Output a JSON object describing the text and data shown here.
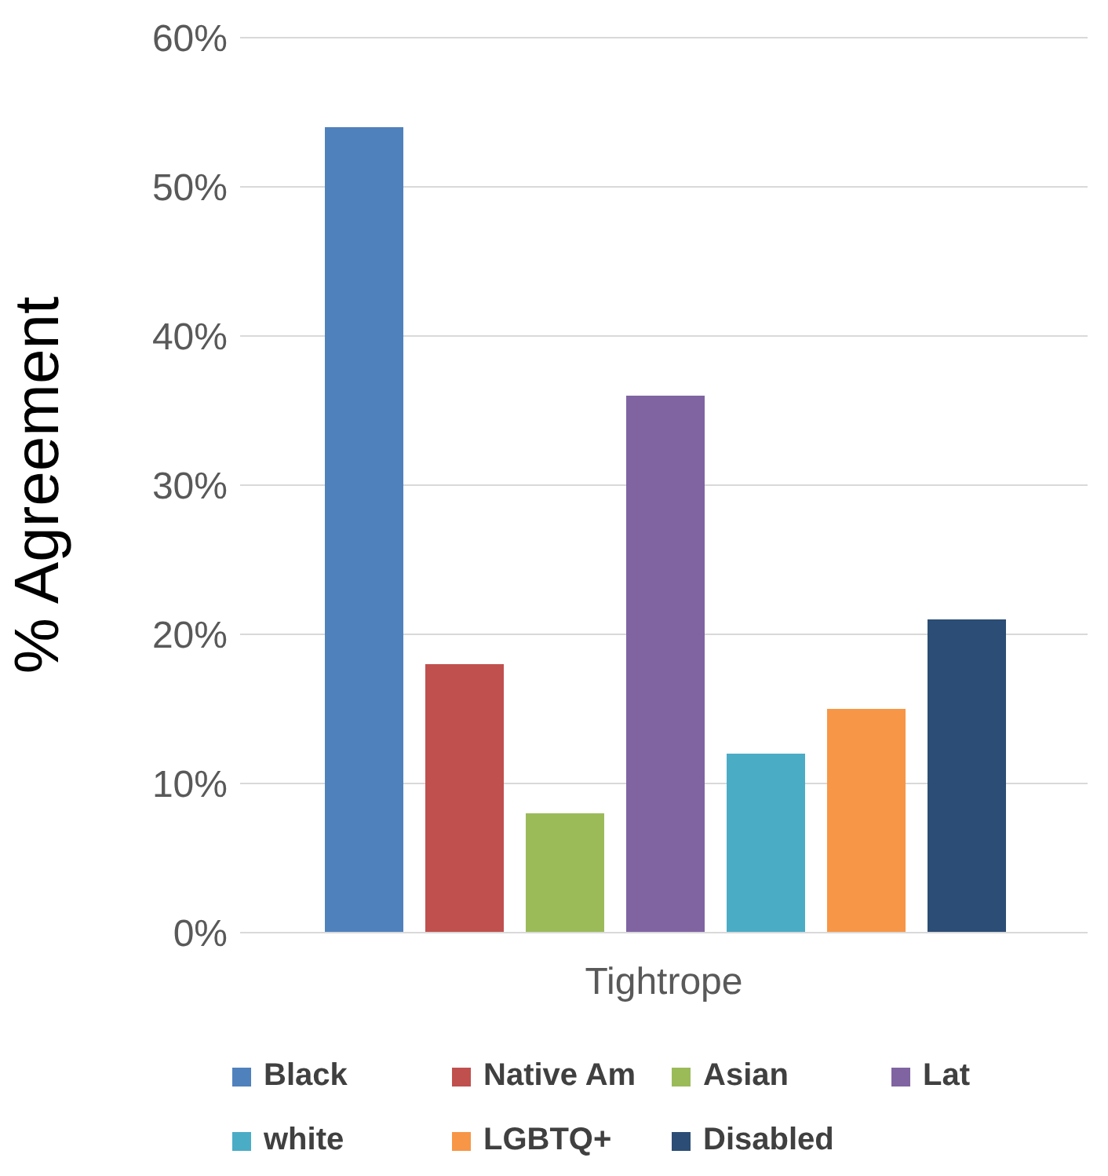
{
  "chart_data": {
    "type": "bar",
    "ylabel": "% Agreement",
    "categories": [
      "Tightrope"
    ],
    "series": [
      {
        "name": "Black",
        "color": "#4f81bd",
        "values": [
          54
        ]
      },
      {
        "name": "Native Am",
        "color": "#c0504d",
        "values": [
          18
        ]
      },
      {
        "name": "Asian",
        "color": "#9bbb59",
        "values": [
          8
        ]
      },
      {
        "name": "Lat",
        "color": "#8064a2",
        "values": [
          36
        ]
      },
      {
        "name": "white",
        "color": "#4bacc6",
        "values": [
          12
        ]
      },
      {
        "name": "LGBTQ+",
        "color": "#f79646",
        "values": [
          15
        ]
      },
      {
        "name": "Disabled",
        "color": "#2c4d75",
        "values": [
          21
        ]
      }
    ],
    "ylim": [
      0,
      60
    ],
    "yticks": [
      {
        "value": 0,
        "label": "0%"
      },
      {
        "value": 10,
        "label": "10%"
      },
      {
        "value": 20,
        "label": "20%"
      },
      {
        "value": 30,
        "label": "30%"
      },
      {
        "value": 40,
        "label": "40%"
      },
      {
        "value": 50,
        "label": "50%"
      },
      {
        "value": 60,
        "label": "60%"
      }
    ],
    "grid": "y",
    "legend": "bottom"
  }
}
